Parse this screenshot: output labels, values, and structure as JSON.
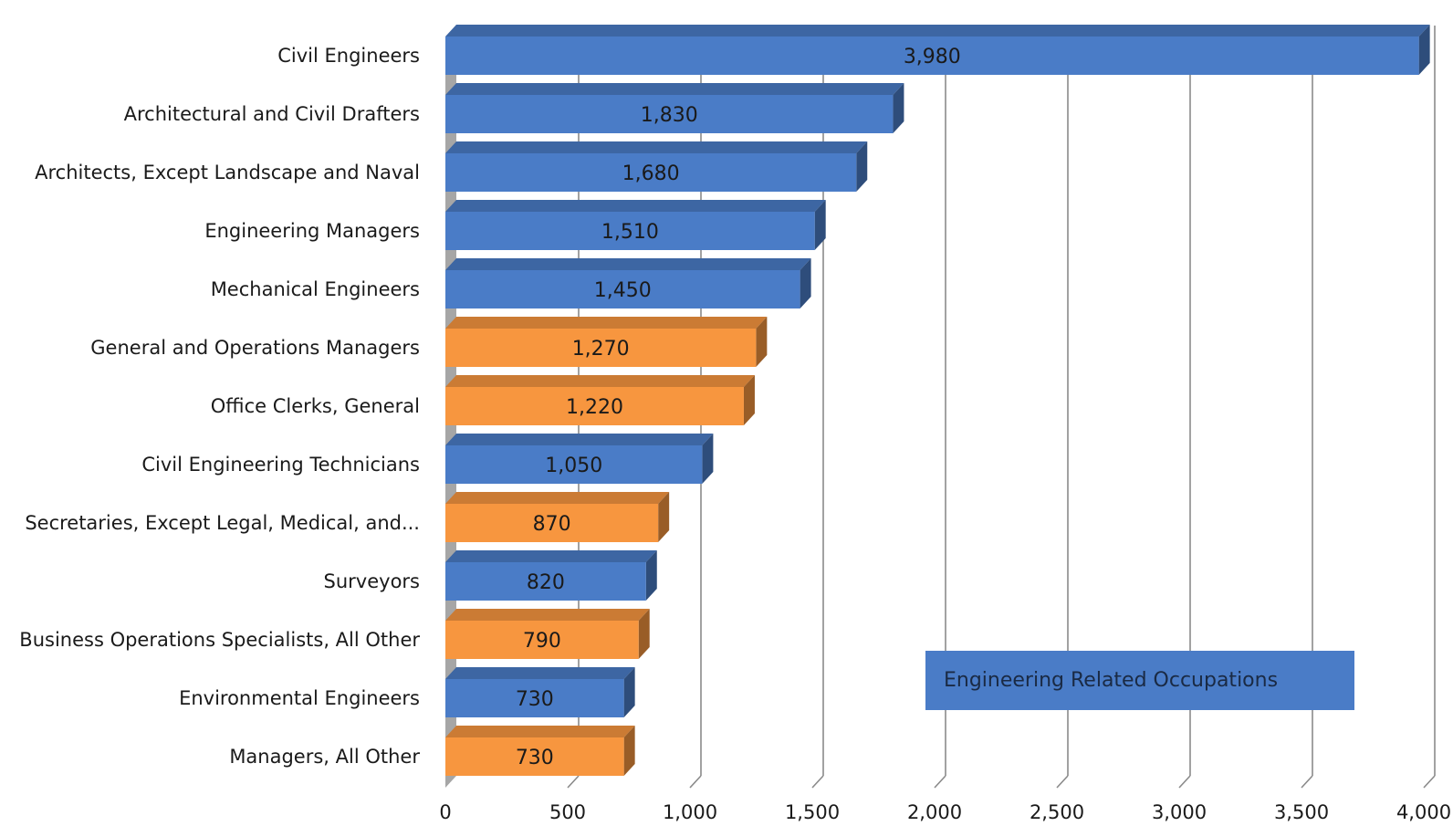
{
  "chart_data": {
    "type": "bar",
    "orientation": "horizontal",
    "style": "3d",
    "categories": [
      "Civil Engineers",
      "Architectural and Civil Drafters",
      "Architects, Except Landscape and Naval",
      "Engineering Managers",
      "Mechanical Engineers",
      "General and Operations Managers",
      "Office Clerks, General",
      "Civil Engineering Technicians",
      "Secretaries, Except Legal, Medical, and...",
      "Surveyors",
      "Business Operations Specialists, All Other",
      "Environmental Engineers",
      "Managers, All Other"
    ],
    "values": [
      3980,
      1830,
      1680,
      1510,
      1450,
      1270,
      1220,
      1050,
      870,
      820,
      790,
      730,
      730
    ],
    "value_labels": [
      "3,980",
      "1,830",
      "1,680",
      "1,510",
      "1,450",
      "1,270",
      "1,220",
      "1,050",
      "870",
      "820",
      "790",
      "730",
      "730"
    ],
    "engineering_related": [
      true,
      true,
      true,
      true,
      true,
      false,
      false,
      true,
      false,
      true,
      false,
      true,
      false
    ],
    "xlim": [
      0,
      4000
    ],
    "x_ticks": [
      0,
      500,
      1000,
      1500,
      2000,
      2500,
      3000,
      3500,
      4000
    ],
    "x_tick_labels": [
      "0",
      "500",
      "1,000",
      "1,500",
      "2,000",
      "2,500",
      "3,000",
      "3,500",
      "4,000"
    ],
    "grid": "vertical",
    "legend": {
      "text": "Engineering Related Occupations",
      "placement": "bottom-right",
      "color": "#4a7cc7"
    },
    "colors": {
      "engineering": "#4a7cc7",
      "other": "#f7963f",
      "gridline": "#8a8a8a",
      "wall": "#a6a6a6"
    }
  }
}
